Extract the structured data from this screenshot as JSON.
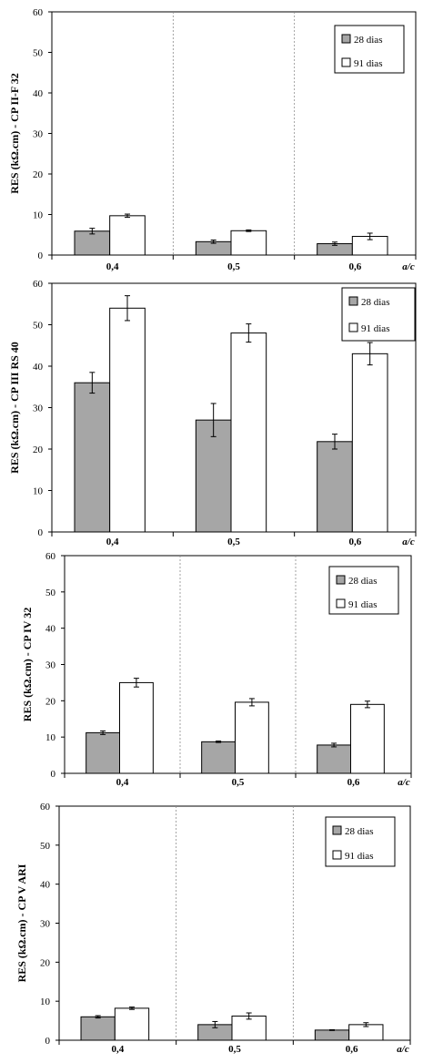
{
  "chart_data": [
    {
      "type": "bar",
      "ylabel": "RES (kΩ.cm)  - CP II-F 32",
      "xlabel": "a/c",
      "categories": [
        "0,4",
        "0,5",
        "0,6"
      ],
      "ylim": [
        0,
        60
      ],
      "yticks": [
        0,
        10,
        20,
        30,
        40,
        50,
        60
      ],
      "grid": "vertical-dashed",
      "legend_position": "top-right",
      "series": [
        {
          "name": "28 dias",
          "color": "#a6a6a6",
          "values": [
            5.9,
            3.3,
            2.8
          ],
          "errors": [
            0.7,
            0.4,
            0.4
          ]
        },
        {
          "name": "91 dias",
          "color": "#ffffff",
          "values": [
            9.7,
            6.0,
            4.6
          ],
          "errors": [
            0.4,
            0.2,
            0.8
          ]
        }
      ]
    },
    {
      "type": "bar",
      "ylabel": "RES (kΩ.cm)  - CP III RS 40",
      "xlabel": "a/c",
      "categories": [
        "0,4",
        "0,5",
        "0,6"
      ],
      "ylim": [
        0,
        60
      ],
      "yticks": [
        0,
        10,
        20,
        30,
        40,
        50,
        60
      ],
      "grid": "none",
      "legend_position": "top-right",
      "series": [
        {
          "name": "28 dias",
          "color": "#a6a6a6",
          "values": [
            36.0,
            27.0,
            21.8
          ],
          "errors": [
            2.5,
            4.0,
            1.8
          ]
        },
        {
          "name": "91 dias",
          "color": "#ffffff",
          "values": [
            54.0,
            48.0,
            43.0
          ],
          "errors": [
            3.0,
            2.2,
            2.7
          ]
        }
      ]
    },
    {
      "type": "bar",
      "ylabel": "RES (kΩ.cm) - CP IV 32",
      "xlabel": "a/c",
      "categories": [
        "0,4",
        "0,5",
        "0,6"
      ],
      "ylim": [
        0,
        60
      ],
      "yticks": [
        0,
        10,
        20,
        30,
        40,
        50,
        60
      ],
      "grid": "vertical-dashed",
      "legend_position": "top-right",
      "series": [
        {
          "name": "28 dias",
          "color": "#a6a6a6",
          "values": [
            11.2,
            8.7,
            7.8
          ],
          "errors": [
            0.5,
            0.2,
            0.5
          ]
        },
        {
          "name": "91 dias",
          "color": "#ffffff",
          "values": [
            25.0,
            19.6,
            19.0
          ],
          "errors": [
            1.2,
            1.0,
            0.9
          ]
        }
      ]
    },
    {
      "type": "bar",
      "ylabel": "RES (kΩ.cm) - CP V ARI",
      "xlabel": "a/c",
      "categories": [
        "0,4",
        "0,5",
        "0,6"
      ],
      "ylim": [
        0,
        60
      ],
      "yticks": [
        0,
        10,
        20,
        30,
        40,
        50,
        60
      ],
      "grid": "vertical-dashed",
      "legend_position": "top-right",
      "series": [
        {
          "name": "28 dias",
          "color": "#a6a6a6",
          "values": [
            6.0,
            4.0,
            2.6
          ],
          "errors": [
            0.3,
            0.8,
            0.1
          ]
        },
        {
          "name": "91 dias",
          "color": "#ffffff",
          "values": [
            8.2,
            6.2,
            4.0
          ],
          "errors": [
            0.3,
            0.8,
            0.5
          ]
        }
      ]
    }
  ]
}
